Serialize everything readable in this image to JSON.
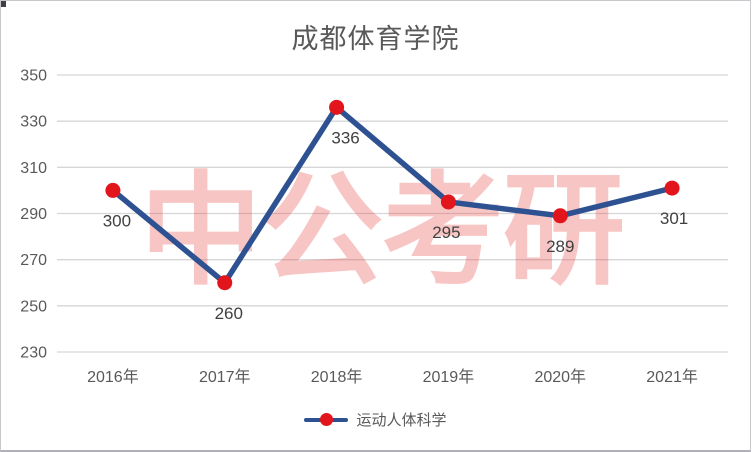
{
  "title": "成都体育学院",
  "watermark": "中公考研",
  "legend": {
    "label": "运动人体科学"
  },
  "chart_data": {
    "type": "line",
    "title": "成都体育学院",
    "categories": [
      "2016年",
      "2017年",
      "2018年",
      "2019年",
      "2020年",
      "2021年"
    ],
    "series": [
      {
        "name": "运动人体科学",
        "values": [
          300,
          260,
          336,
          295,
          289,
          301
        ]
      }
    ],
    "data_labels": [
      "300",
      "260",
      "336",
      "295",
      "289",
      "301"
    ],
    "yticks": [
      350,
      330,
      310,
      290,
      270,
      250,
      230
    ],
    "ylim": [
      230,
      350
    ],
    "grid": true,
    "legend_position": "bottom",
    "colors": {
      "line": "#2e5191",
      "marker": "#e2151c",
      "gridline": "#d6d6d8",
      "axis_text": "#595959",
      "data_label": "#404040",
      "watermark": "rgba(230, 62, 58, 0.30)",
      "title_text": "#595959"
    }
  }
}
